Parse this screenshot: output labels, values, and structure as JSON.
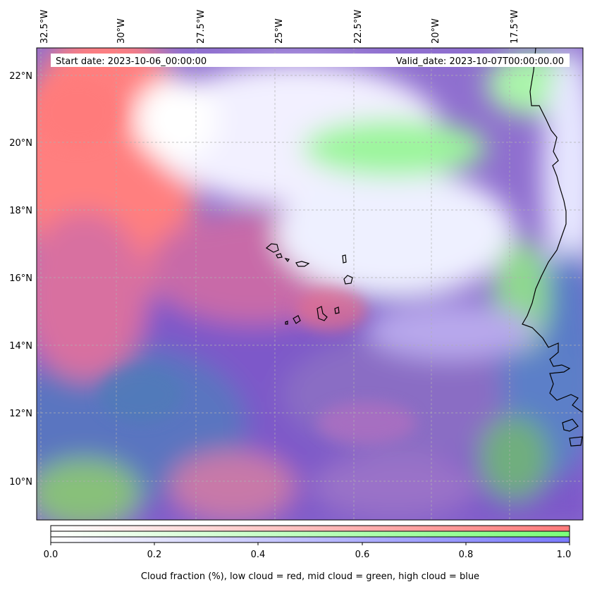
{
  "header": {
    "start_date": "Start date: 2023-10-06_00:00:00",
    "valid_date": "Valid_date: 2023-10-07T00:00:00.00"
  },
  "map": {
    "longitude_labels": [
      "32.5°W",
      "30°W",
      "27.5°W",
      "25°W",
      "22.5°W",
      "20°W",
      "17.5°W"
    ],
    "latitude_labels": [
      "22°N",
      "20°N",
      "18°N",
      "16°N",
      "14°N",
      "12°N",
      "10°N"
    ],
    "colors": {
      "low_cloud": "#ff7a7a",
      "mid_cloud": "#7aff7a",
      "high_cloud": "#7a7aff"
    }
  },
  "colorbar": {
    "tick_labels": [
      "0.0",
      "0.2",
      "0.4",
      "0.6",
      "0.8",
      "1.0"
    ],
    "label": "Cloud fraction (%), low cloud = red, mid cloud = green, high cloud = blue"
  }
}
